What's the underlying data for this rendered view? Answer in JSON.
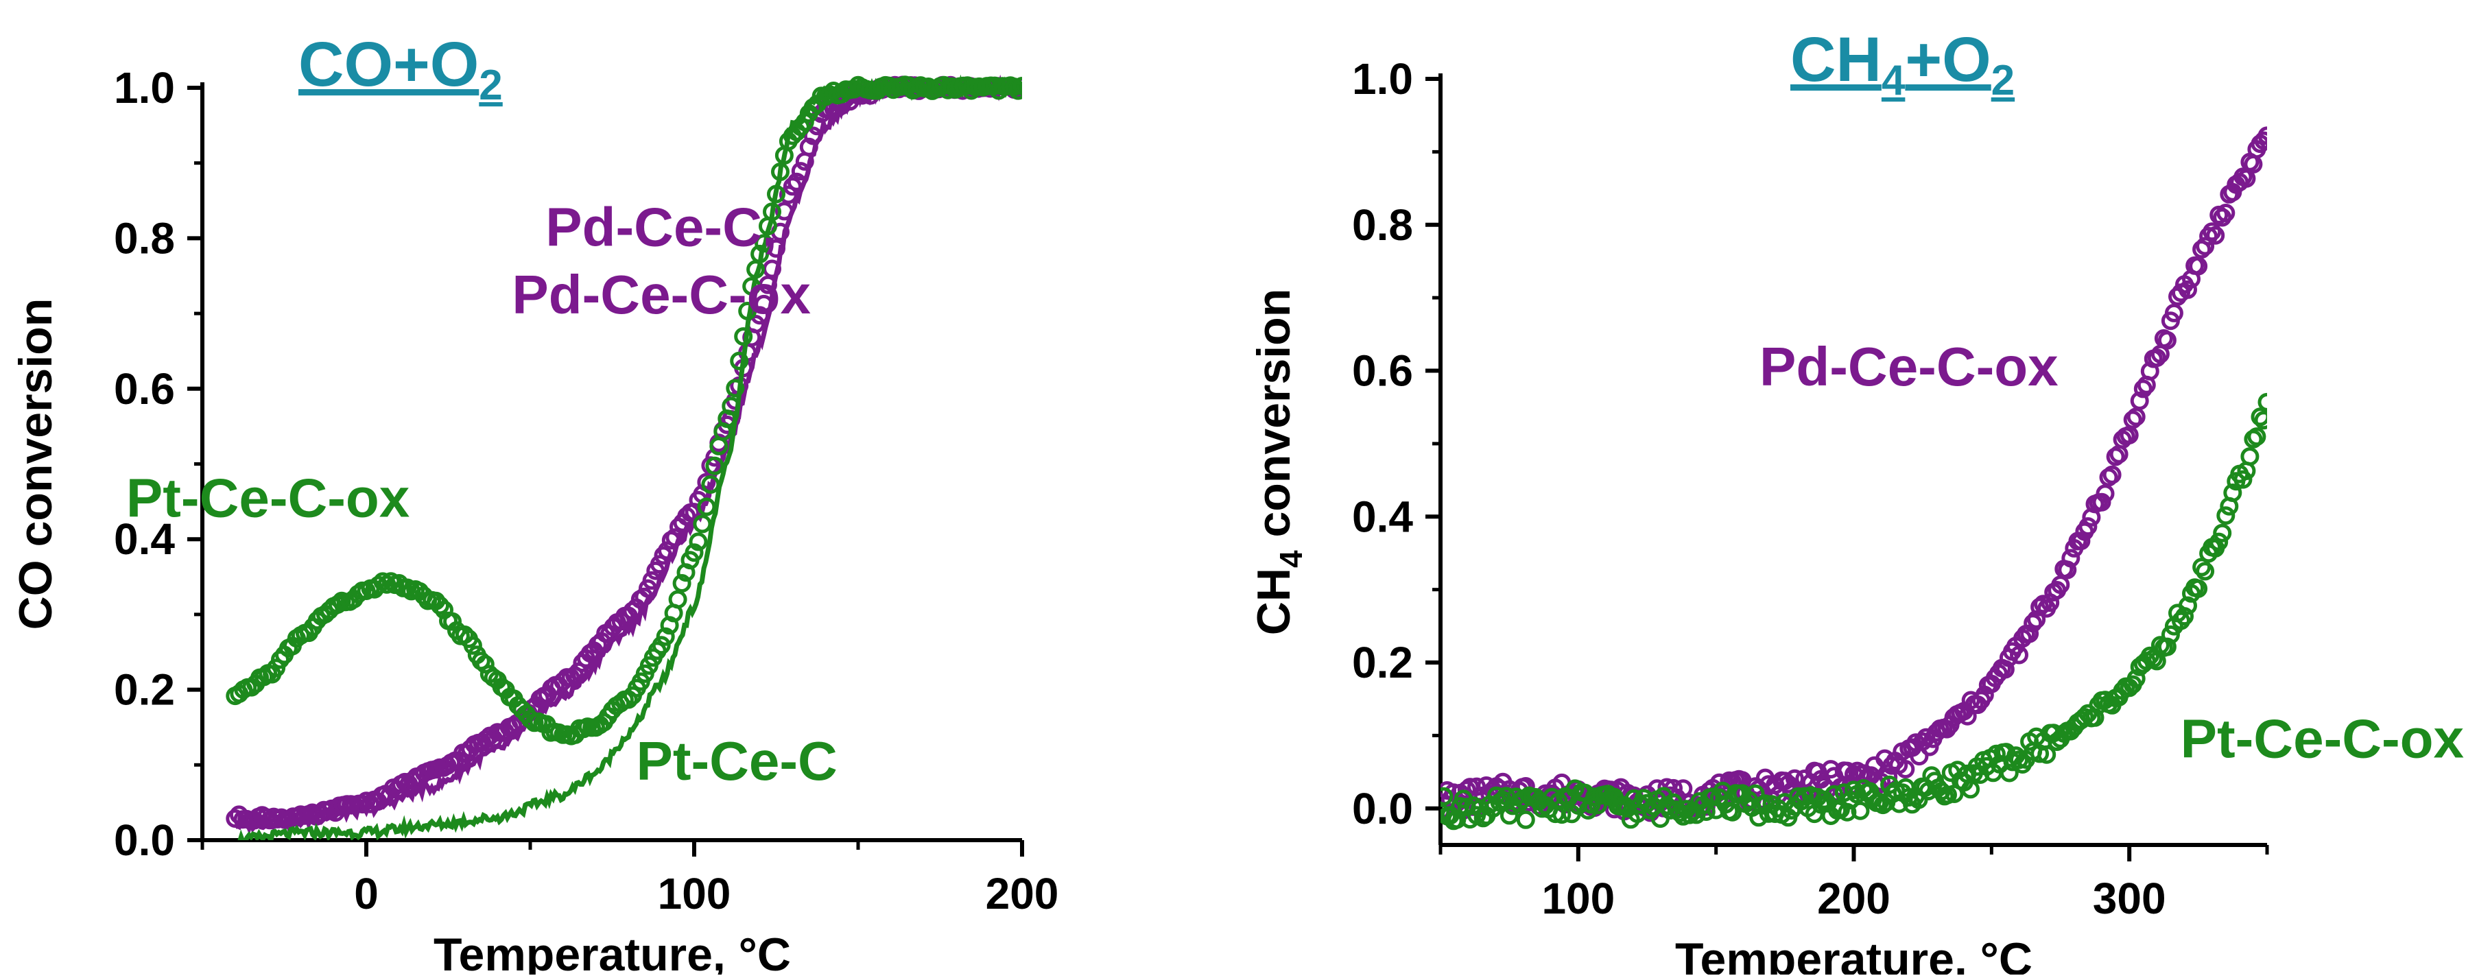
{
  "chart_data": [
    {
      "type": "scatter",
      "title": "CO+O",
      "title_sub": "2",
      "xlabel": "Temperature, °C",
      "ylabel": "CO conversion",
      "xlim": [
        -50,
        200
      ],
      "ylim": [
        0,
        1.0
      ],
      "xticks": [
        0,
        100,
        200
      ],
      "yticks": [
        0.0,
        0.2,
        0.4,
        0.6,
        0.8,
        1.0
      ],
      "xtick_labels": [
        "0",
        "100",
        "200"
      ],
      "ytick_labels": [
        "0.0",
        "0.2",
        "0.4",
        "0.6",
        "0.8",
        "1.0"
      ],
      "colors": {
        "title": "#1a8ca5",
        "purple": "#7b1a8e",
        "green": "#1d8a1d"
      },
      "annotations": [
        {
          "text": "Pd-Ce-C,",
          "x": 90,
          "y": 0.79,
          "color": "purple"
        },
        {
          "text": "Pd-Ce-C-ox",
          "x": 90,
          "y": 0.7,
          "color": "purple"
        },
        {
          "text": "Pt-Ce-C-ox",
          "x": -30,
          "y": 0.43,
          "color": "green"
        },
        {
          "text": "Pt-Ce-C",
          "x": 113,
          "y": 0.08,
          "color": "green"
        }
      ],
      "series": [
        {
          "name": "Pd-Ce-C",
          "style": "line",
          "color": "purple",
          "x": [
            -40,
            -20,
            0,
            20,
            40,
            60,
            80,
            100,
            110,
            120,
            130,
            140,
            150,
            160,
            200
          ],
          "y": [
            0.02,
            0.025,
            0.04,
            0.07,
            0.12,
            0.19,
            0.28,
            0.42,
            0.52,
            0.66,
            0.84,
            0.95,
            0.99,
            1.0,
            1.0
          ]
        },
        {
          "name": "Pd-Ce-C-ox",
          "style": "circles",
          "color": "purple",
          "x": [
            -40,
            -20,
            0,
            20,
            40,
            60,
            80,
            100,
            110,
            120,
            130,
            140,
            150,
            160,
            200
          ],
          "y": [
            0.03,
            0.03,
            0.05,
            0.09,
            0.14,
            0.21,
            0.3,
            0.44,
            0.55,
            0.7,
            0.87,
            0.97,
            0.99,
            1.0,
            1.0
          ]
        },
        {
          "name": "Pt-Ce-C",
          "style": "line",
          "color": "green",
          "x": [
            -40,
            -20,
            0,
            20,
            40,
            60,
            70,
            80,
            90,
            100,
            110,
            120,
            130,
            140,
            150,
            200
          ],
          "y": [
            0.0,
            0.01,
            0.01,
            0.02,
            0.03,
            0.06,
            0.09,
            0.14,
            0.21,
            0.31,
            0.5,
            0.77,
            0.95,
            0.995,
            1.0,
            1.0
          ]
        },
        {
          "name": "Pt-Ce-C-ox",
          "style": "circles",
          "color": "green",
          "x": [
            -40,
            -30,
            -20,
            -10,
            0,
            5,
            10,
            20,
            30,
            40,
            50,
            60,
            70,
            80,
            90,
            100,
            110,
            120,
            130,
            140,
            150,
            200
          ],
          "y": [
            0.19,
            0.22,
            0.27,
            0.31,
            0.33,
            0.34,
            0.34,
            0.32,
            0.27,
            0.21,
            0.16,
            0.14,
            0.15,
            0.19,
            0.26,
            0.38,
            0.56,
            0.78,
            0.94,
            0.99,
            1.0,
            1.0
          ]
        }
      ]
    },
    {
      "type": "scatter",
      "title": "CH",
      "title_sub1": "4",
      "title_mid": "+O",
      "title_sub2": "2",
      "xlabel": "Temperature, °C",
      "ylabel": "CH",
      "ylabel_sub": "4",
      "ylabel_rest": " conversion",
      "xlim": [
        50,
        350
      ],
      "ylim": [
        -0.05,
        1.0
      ],
      "xticks": [
        100,
        200,
        300
      ],
      "yticks": [
        0.0,
        0.2,
        0.4,
        0.6,
        0.8,
        1.0
      ],
      "xtick_labels": [
        "100",
        "200",
        "300"
      ],
      "ytick_labels": [
        "0.0",
        "0.2",
        "0.4",
        "0.6",
        "0.8",
        "1.0"
      ],
      "colors": {
        "title": "#1a8ca5",
        "purple": "#7b1a8e",
        "green": "#1d8a1d"
      },
      "annotations": [
        {
          "text": "Pd-Ce-C-ox",
          "x": 220,
          "y": 0.58,
          "color": "purple"
        },
        {
          "text": "Pt-Ce-C-ox",
          "x": 370,
          "y": 0.07,
          "color": "green"
        }
      ],
      "series": [
        {
          "name": "Pd-Ce-C-ox",
          "style": "circles",
          "color": "purple",
          "x": [
            50,
            75,
            100,
            125,
            150,
            175,
            200,
            210,
            220,
            230,
            240,
            250,
            260,
            270,
            280,
            290,
            300,
            310,
            320,
            330,
            340,
            350
          ],
          "y": [
            0.01,
            0.02,
            0.02,
            0.01,
            0.02,
            0.03,
            0.04,
            0.05,
            0.07,
            0.1,
            0.13,
            0.17,
            0.22,
            0.28,
            0.35,
            0.43,
            0.52,
            0.62,
            0.71,
            0.79,
            0.86,
            0.92
          ]
        },
        {
          "name": "Pt-Ce-C-ox",
          "style": "circles",
          "color": "green",
          "x": [
            50,
            75,
            100,
            125,
            150,
            175,
            200,
            220,
            240,
            260,
            270,
            280,
            290,
            300,
            310,
            320,
            330,
            340,
            350
          ],
          "y": [
            0.0,
            0.0,
            0.01,
            0.0,
            0.01,
            0.0,
            0.01,
            0.02,
            0.04,
            0.07,
            0.09,
            0.11,
            0.14,
            0.17,
            0.21,
            0.27,
            0.35,
            0.45,
            0.55
          ]
        }
      ]
    }
  ]
}
